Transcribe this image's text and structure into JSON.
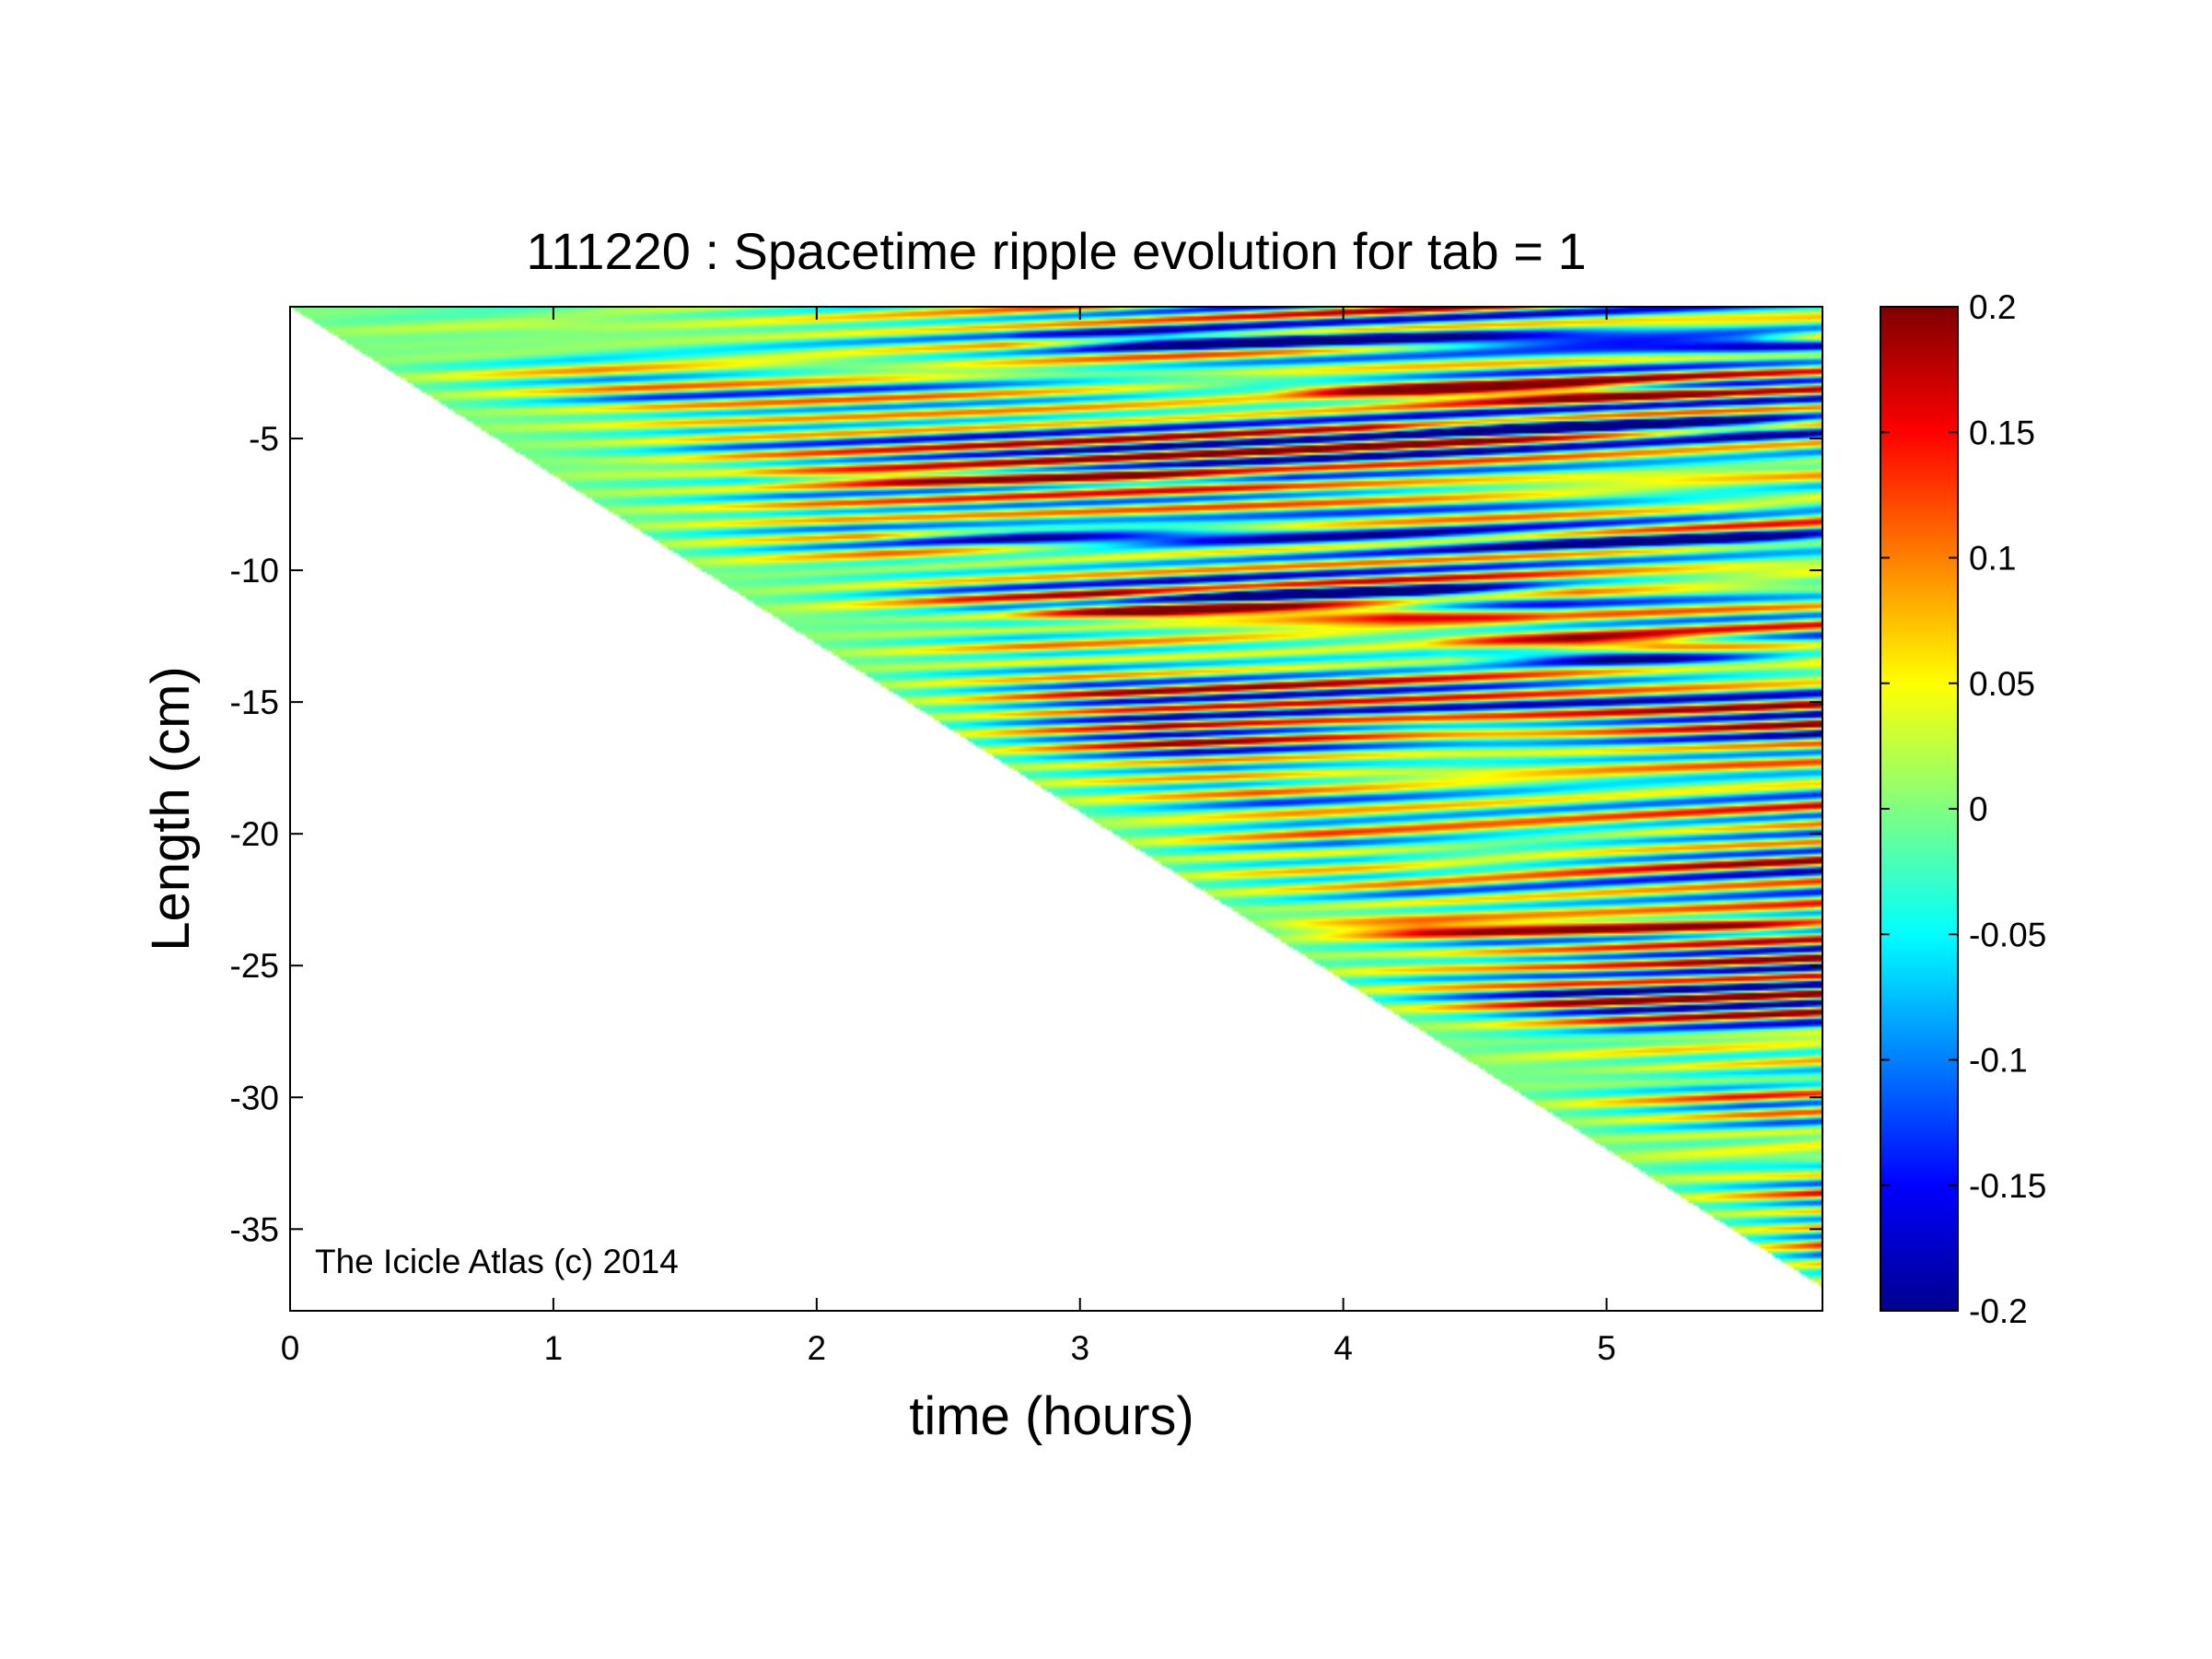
{
  "chart_data": {
    "type": "heatmap",
    "title": "111220 : Spacetime ripple evolution for tab = 1",
    "xlabel": "time (hours)",
    "ylabel": "Length (cm)",
    "xlim": [
      0,
      5.82
    ],
    "ylim": [
      -38.1,
      0
    ],
    "xticks": [
      0,
      1,
      2,
      3,
      4,
      5
    ],
    "yticks": [
      -5,
      -10,
      -15,
      -20,
      -25,
      -30,
      -35
    ],
    "xtick_labels": [
      "0",
      "1",
      "2",
      "3",
      "4",
      "5"
    ],
    "ytick_labels": [
      "-5",
      "-10",
      "-15",
      "-20",
      "-25",
      "-30",
      "-35"
    ],
    "colorbar": {
      "colormap": "jet",
      "clim": [
        -0.2,
        0.2
      ],
      "ticks": [
        0.2,
        0.15,
        0.1,
        0.05,
        0,
        -0.05,
        -0.1,
        -0.15,
        -0.2
      ],
      "tick_labels": [
        "0.2",
        "0.15",
        "0.1",
        "0.05",
        "0",
        "-0.05",
        "-0.1",
        "-0.15",
        "-0.2"
      ]
    },
    "growth_front": {
      "description_values": {
        "start_time_hours": 0,
        "start_length_cm": 0,
        "end_time_hours": 5.82,
        "end_length_cm": -37.2
      }
    },
    "notable_features": [
      {
        "time_hours": [
          3.0,
          5.82
        ],
        "length_cm": -1.3,
        "value": -0.2
      },
      {
        "time_hours": [
          4.0,
          5.2
        ],
        "length_cm": -3.2,
        "value": 0.2
      },
      {
        "time_hours": [
          4.4,
          5.82
        ],
        "length_cm": -4.6,
        "value": -0.2
      },
      {
        "time_hours": [
          2.0,
          3.5
        ],
        "length_cm": -6.5,
        "value": 0.15
      },
      {
        "time_hours": [
          2.5,
          5.82
        ],
        "length_cm": -8.8,
        "value": -0.15
      },
      {
        "time_hours": [
          3.4,
          4.6
        ],
        "length_cm": -10.9,
        "value": -0.2
      },
      {
        "time_hours": [
          3.0,
          4.5
        ],
        "length_cm": -11.6,
        "value": 0.2
      },
      {
        "time_hours": [
          4.7,
          5.5
        ],
        "length_cm": -13.3,
        "value": -0.2
      },
      {
        "time_hours": [
          4.6,
          5.5
        ],
        "length_cm": -12.8,
        "value": 0.2
      },
      {
        "time_hours": [
          4.0,
          5.82
        ],
        "length_cm": -23.6,
        "value": 0.15
      }
    ]
  },
  "annotation": {
    "text": "The Icicle Atlas (c) 2014"
  }
}
